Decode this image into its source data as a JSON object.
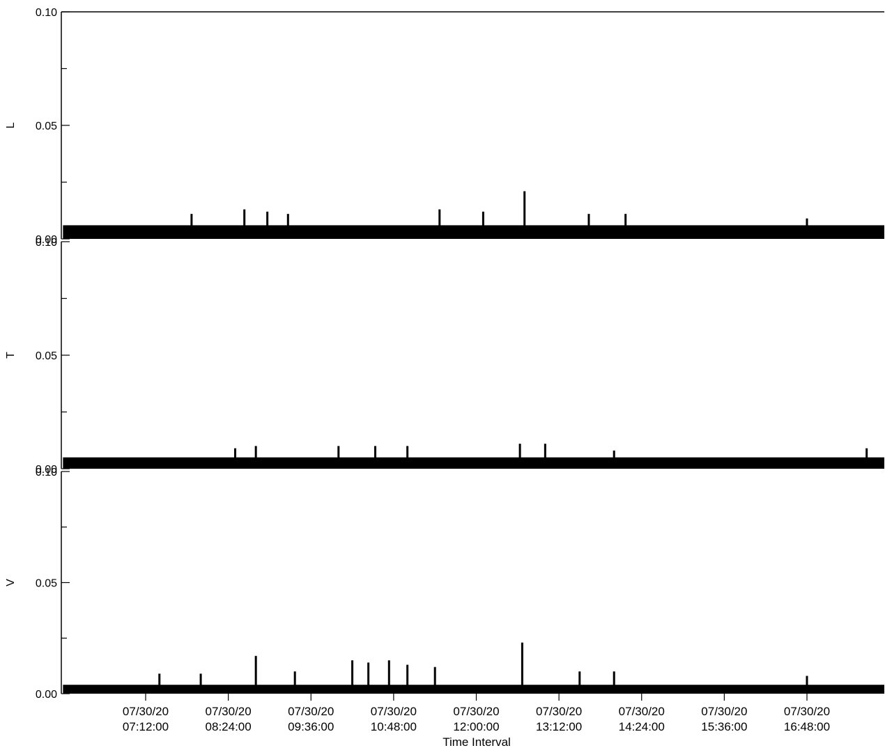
{
  "chart_data": {
    "type": "bar",
    "xlabel": "Time Interval",
    "x_ticks": [
      [
        "07/30/20",
        "07:12:00"
      ],
      [
        "07/30/20",
        "08:24:00"
      ],
      [
        "07/30/20",
        "09:36:00"
      ],
      [
        "07/30/20",
        "10:48:00"
      ],
      [
        "07/30/20",
        "12:00:00"
      ],
      [
        "07/30/20",
        "13:12:00"
      ],
      [
        "07/30/20",
        "14:24:00"
      ],
      [
        "07/30/20",
        "15:36:00"
      ],
      [
        "07/30/20",
        "16:48:00"
      ]
    ],
    "x_range": [
      "07/30/20 06:00:00",
      "07/30/20 17:54:00"
    ],
    "grid": false,
    "panels": [
      {
        "ylabel": "L",
        "ylim": [
          0,
          0.1
        ],
        "y_ticks": [
          "0.00",
          "0.05",
          "0.10"
        ],
        "baseline": 0.006,
        "spikes": [
          {
            "t": "07:52",
            "v": 0.011
          },
          {
            "t": "08:38",
            "v": 0.013
          },
          {
            "t": "08:58",
            "v": 0.012
          },
          {
            "t": "09:16",
            "v": 0.011
          },
          {
            "t": "11:28",
            "v": 0.013
          },
          {
            "t": "12:06",
            "v": 0.012
          },
          {
            "t": "12:42",
            "v": 0.021
          },
          {
            "t": "13:38",
            "v": 0.011
          },
          {
            "t": "14:10",
            "v": 0.011
          },
          {
            "t": "16:48",
            "v": 0.009
          }
        ]
      },
      {
        "ylabel": "T",
        "ylim": [
          0,
          0.1
        ],
        "y_ticks": [
          "0.00",
          "0.05",
          "0.10"
        ],
        "baseline": 0.005,
        "spikes": [
          {
            "t": "08:30",
            "v": 0.009
          },
          {
            "t": "08:48",
            "v": 0.01
          },
          {
            "t": "10:00",
            "v": 0.01
          },
          {
            "t": "10:32",
            "v": 0.01
          },
          {
            "t": "11:00",
            "v": 0.01
          },
          {
            "t": "12:38",
            "v": 0.011
          },
          {
            "t": "13:00",
            "v": 0.011
          },
          {
            "t": "14:00",
            "v": 0.008
          },
          {
            "t": "17:40",
            "v": 0.009
          }
        ]
      },
      {
        "ylabel": "V",
        "ylim": [
          0,
          0.1
        ],
        "y_ticks": [
          "0.00",
          "0.05",
          "0.10"
        ],
        "baseline": 0.004,
        "spikes": [
          {
            "t": "07:24",
            "v": 0.009
          },
          {
            "t": "08:00",
            "v": 0.009
          },
          {
            "t": "08:48",
            "v": 0.017
          },
          {
            "t": "09:22",
            "v": 0.01
          },
          {
            "t": "10:12",
            "v": 0.015
          },
          {
            "t": "10:26",
            "v": 0.014
          },
          {
            "t": "10:44",
            "v": 0.015
          },
          {
            "t": "11:00",
            "v": 0.013
          },
          {
            "t": "11:24",
            "v": 0.012
          },
          {
            "t": "12:40",
            "v": 0.023
          },
          {
            "t": "13:30",
            "v": 0.01
          },
          {
            "t": "14:00",
            "v": 0.01
          },
          {
            "t": "16:48",
            "v": 0.008
          }
        ]
      }
    ]
  }
}
